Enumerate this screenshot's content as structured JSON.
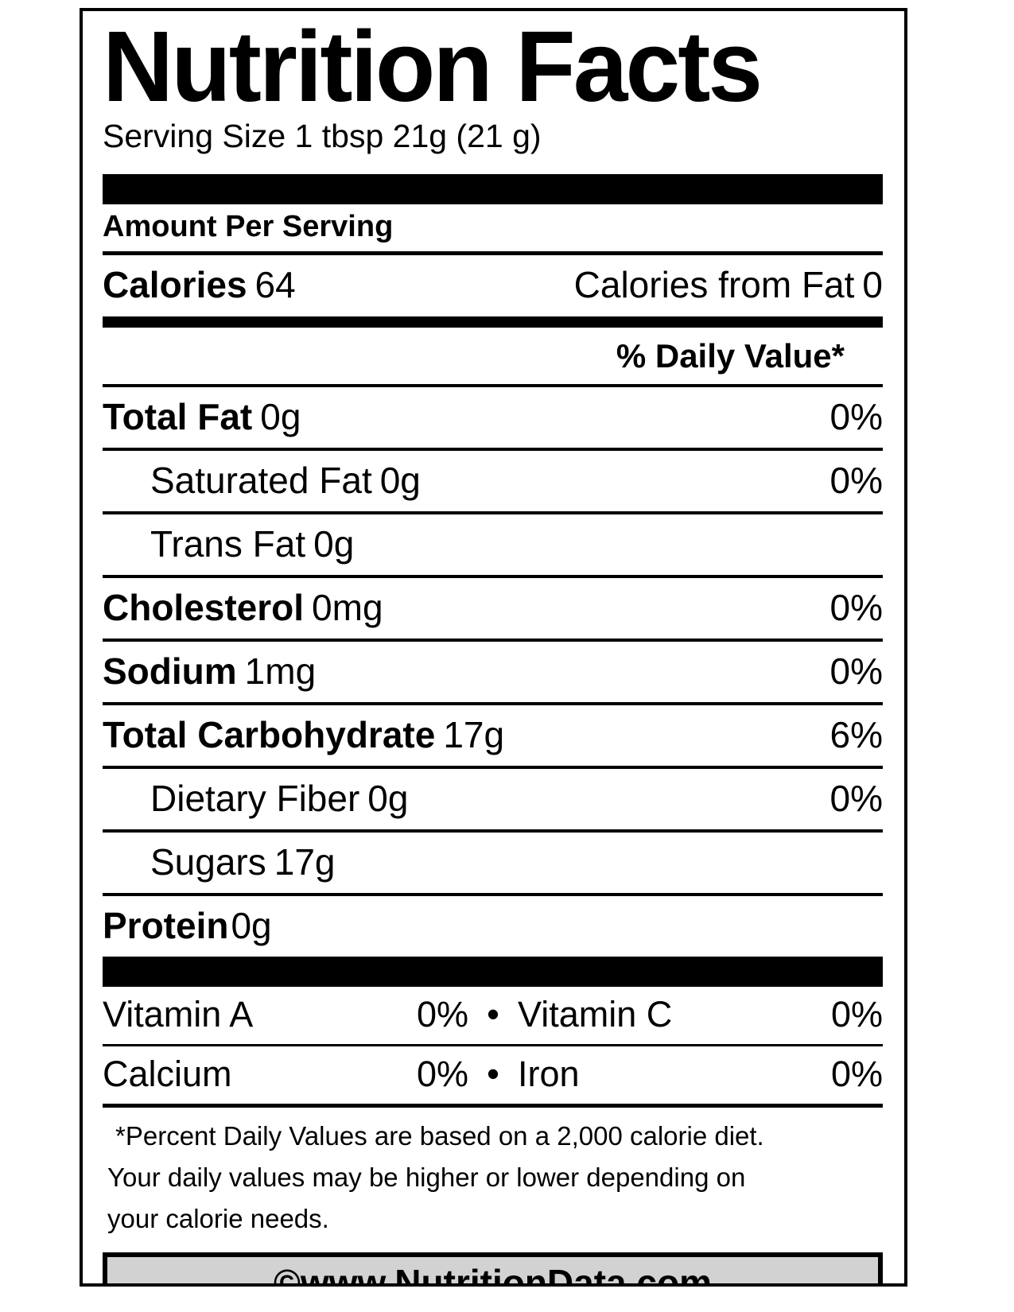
{
  "label": {
    "title": "Nutrition Facts",
    "serving_size": "Serving Size 1 tbsp 21g (21 g)",
    "amount_per_serving": "Amount Per Serving",
    "calories": {
      "label": "Calories",
      "value": "64",
      "from_fat_label": "Calories from Fat",
      "from_fat_value": "0"
    },
    "daily_value_header": "% Daily Value*",
    "nutrients": [
      {
        "name": "Total Fat",
        "amount": "0g",
        "dv": "0%"
      },
      {
        "name": "Saturated Fat",
        "amount": "0g",
        "dv": "0%"
      },
      {
        "name": "Trans Fat",
        "amount": "0g",
        "dv": ""
      },
      {
        "name": "Cholesterol",
        "amount": "0mg",
        "dv": "0%"
      },
      {
        "name": "Sodium",
        "amount": "1mg",
        "dv": "0%"
      },
      {
        "name": "Total Carbohydrate",
        "amount": "17g",
        "dv": "6%"
      },
      {
        "name": "Dietary Fiber",
        "amount": "0g",
        "dv": "0%"
      },
      {
        "name": "Sugars",
        "amount": "17g",
        "dv": ""
      },
      {
        "name": "Protein",
        "amount": "0g",
        "dv": ""
      }
    ],
    "micronutrients": [
      {
        "left_name": "Vitamin A",
        "left_value": "0%",
        "bullet": "•",
        "right_name": "Vitamin C",
        "right_value": "0%"
      },
      {
        "left_name": "Calcium",
        "left_value": "0%",
        "bullet": "•",
        "right_name": "Iron",
        "right_value": "0%"
      }
    ],
    "footnote_lines": [
      "*Percent Daily Values are based on a 2,000 calorie diet.",
      "Your daily values may be higher or lower depending on",
      "your calorie needs."
    ],
    "footer": "©www.NutritionData.com",
    "colors": {
      "text": "#000000",
      "border": "#000000",
      "footer_background": "#d2d2d2"
    }
  }
}
